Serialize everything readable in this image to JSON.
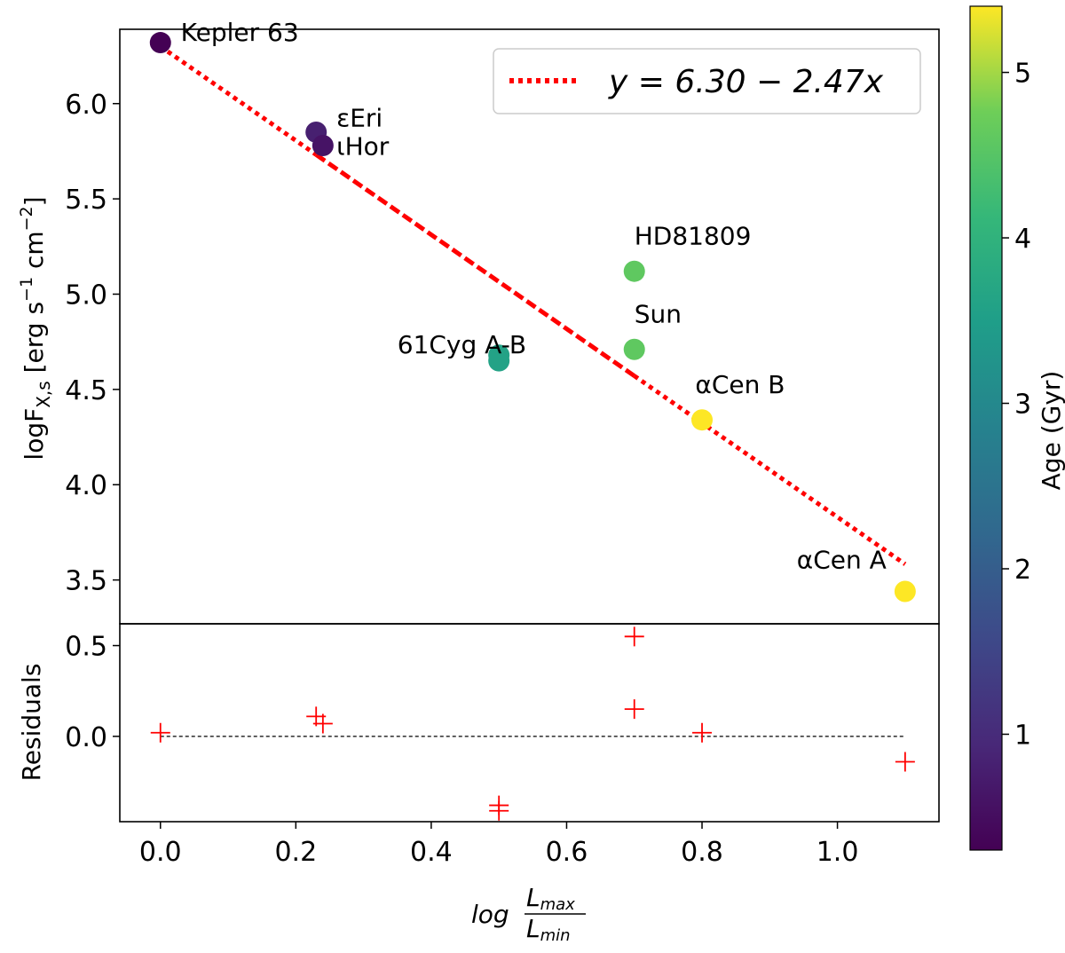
{
  "chart_data": {
    "type": "scatter",
    "main": {
      "ylabel_main": "logF",
      "ylabel_sub": "X,s",
      "ylabel_units": " [erg s",
      "ylabel_exp1": "−1",
      "ylabel_units2": " cm",
      "ylabel_exp2": "−2",
      "ylabel_close": "]",
      "xlim": [
        -0.06,
        1.15
      ],
      "ylim": [
        3.27,
        6.39
      ],
      "yticks": [
        "3.5",
        "4.0",
        "4.5",
        "5.0",
        "5.5",
        "6.0"
      ],
      "points": [
        {
          "name": "Kepler 63",
          "x": 0.0,
          "y": 6.32,
          "age": 0.3
        },
        {
          "name": "εEri",
          "x": 0.23,
          "y": 5.85,
          "age": 0.8
        },
        {
          "name": "ιHor",
          "x": 0.24,
          "y": 5.78,
          "age": 0.6
        },
        {
          "name": "61Cyg A-B",
          "x": 0.5,
          "y": 4.68,
          "age": 3.6
        },
        {
          "name": "61Cyg A-B (2)",
          "x": 0.5,
          "y": 4.65,
          "age": 3.6
        },
        {
          "name": "HD81809",
          "x": 0.7,
          "y": 5.12,
          "age": 4.6
        },
        {
          "name": "Sun",
          "x": 0.7,
          "y": 4.71,
          "age": 4.6
        },
        {
          "name": "αCen B",
          "x": 0.8,
          "y": 4.34,
          "age": 5.4
        },
        {
          "name": "αCen A",
          "x": 1.1,
          "y": 3.44,
          "age": 5.4
        }
      ],
      "labels": [
        {
          "text": "Kepler 63",
          "anchor_x": 0.03,
          "anchor_y": 6.33
        },
        {
          "text": "εEri",
          "anchor_x": 0.26,
          "anchor_y": 5.88
        },
        {
          "text": "ιHor",
          "anchor_x": 0.26,
          "anchor_y": 5.73
        },
        {
          "text": "61Cyg A-B",
          "anchor_x": 0.35,
          "anchor_y": 4.69
        },
        {
          "text": "HD81809",
          "anchor_x": 0.7,
          "anchor_y": 5.26
        },
        {
          "text": "Sun",
          "anchor_x": 0.7,
          "anchor_y": 4.85
        },
        {
          "text": "αCen B",
          "anchor_x": 0.79,
          "anchor_y": 4.48
        },
        {
          "text": "αCen A",
          "anchor_x": 0.94,
          "anchor_y": 3.56
        }
      ],
      "fit": {
        "intercept": 6.3,
        "slope": -2.47,
        "segments": [
          {
            "x": [
              0.0,
              0.23
            ],
            "style": "dotted"
          },
          {
            "x": [
              0.23,
              0.7
            ],
            "style": "dashed"
          },
          {
            "x": [
              0.7,
              1.1
            ],
            "style": "dotted"
          }
        ],
        "color": "#ff0000"
      },
      "legend_label": "y = 6.30 − 2.47x",
      "legend_position": "top-right"
    },
    "residuals": {
      "ylabel": "Residuals",
      "ylim": [
        -0.47,
        0.62
      ],
      "yticks": [
        "0.0",
        "0.5"
      ],
      "points": [
        {
          "x": 0.0,
          "y": 0.02
        },
        {
          "x": 0.23,
          "y": 0.11
        },
        {
          "x": 0.24,
          "y": 0.07
        },
        {
          "x": 0.5,
          "y": -0.38
        },
        {
          "x": 0.5,
          "y": -0.41
        },
        {
          "x": 0.7,
          "y": 0.55
        },
        {
          "x": 0.7,
          "y": 0.15
        },
        {
          "x": 0.8,
          "y": 0.02
        },
        {
          "x": 1.1,
          "y": -0.14
        }
      ],
      "zero_line": {
        "x": [
          0.0,
          1.1
        ]
      },
      "marker_color": "#ff0000"
    },
    "xaxis": {
      "ticks": [
        "0.0",
        "0.2",
        "0.4",
        "0.6",
        "0.8",
        "1.0"
      ],
      "tick_values": [
        0.0,
        0.2,
        0.4,
        0.6,
        0.8,
        1.0
      ],
      "xlabel_log": "log",
      "xlabel_num": "L",
      "xlabel_num_sub": "max",
      "xlabel_den": "L",
      "xlabel_den_sub": "min"
    },
    "colorbar": {
      "label": "Age (Gyr)",
      "range": [
        0.3,
        5.4
      ],
      "ticks": [
        "1",
        "2",
        "3",
        "4",
        "5"
      ],
      "tick_values": [
        1,
        2,
        3,
        4,
        5
      ],
      "colormap": "viridis"
    }
  }
}
